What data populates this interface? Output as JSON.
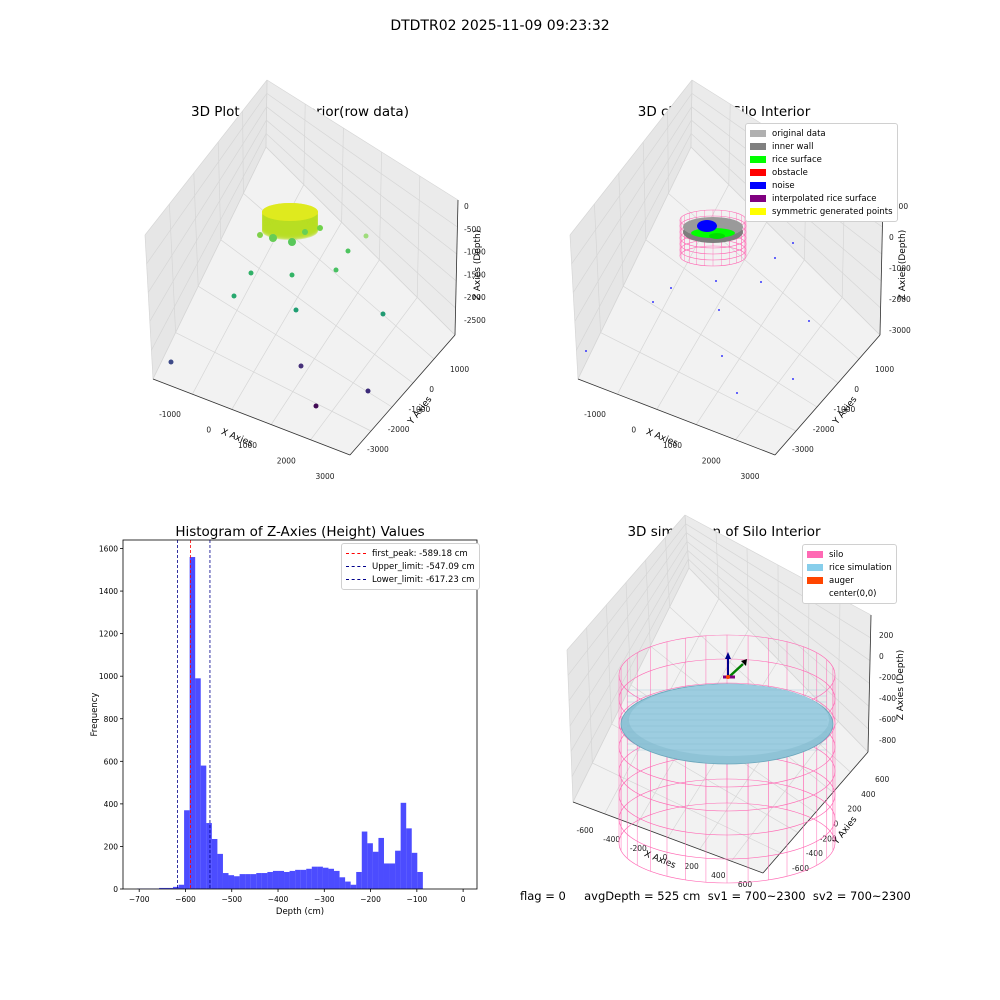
{
  "suptitle": "DTDTR02 2025-11-09 09:23:32",
  "panels": {
    "raw": {
      "title": "3D Plot of Silo Interior(row data)",
      "xlabel": "X Axies",
      "ylabel": "Y Axies",
      "zlabel": "Z Axies (Depth)",
      "xticks": [
        "-1000",
        "0",
        "1000",
        "2000",
        "3000"
      ],
      "yticks": [
        "1000",
        "0",
        "-1000",
        "-2000",
        "-3000"
      ],
      "zticks": [
        "0",
        "-500",
        "-1000",
        "-1500",
        "-2000",
        "-2500"
      ]
    },
    "classify": {
      "title": "3D classify of Silo Interior",
      "xlabel": "X Axies",
      "ylabel": "Y Axies",
      "zlabel": "Z Axies (Depth)",
      "xticks": [
        "-1000",
        "0",
        "1000",
        "2000",
        "3000"
      ],
      "yticks": [
        "1000",
        "0",
        "-1000",
        "-2000",
        "-3000"
      ],
      "zticks": [
        "1000",
        "0",
        "-1000",
        "-2000",
        "-3000"
      ],
      "legend": [
        {
          "label": "original data",
          "color": "#b0b0b0"
        },
        {
          "label": "inner wall",
          "color": "#808080"
        },
        {
          "label": "rice surface",
          "color": "#00ff00"
        },
        {
          "label": "obstacle",
          "color": "#ff0000"
        },
        {
          "label": "noise",
          "color": "#0000ff"
        },
        {
          "label": "interpolated rice surface",
          "color": "#800080"
        },
        {
          "label": "symmetric generated points",
          "color": "#ffff00"
        }
      ]
    },
    "simulation": {
      "title": "3D simulation of Silo Interior",
      "xlabel": "X Axies",
      "ylabel": "Y Axies",
      "zlabel": "Z Axies (Depth)",
      "xticks": [
        "-600",
        "-400",
        "-200",
        "0",
        "200",
        "400",
        "600"
      ],
      "yticks": [
        "600",
        "400",
        "200",
        "0",
        "-200",
        "-400",
        "-600"
      ],
      "zticks": [
        "200",
        "0",
        "-200",
        "-400",
        "-600",
        "-800"
      ],
      "legend": [
        {
          "label": "silo",
          "color": "#ff69b4"
        },
        {
          "label": "rice simulation",
          "color": "#87ceeb"
        },
        {
          "label": "auger",
          "color": "#ff4500"
        },
        {
          "label": "center(0,0)",
          "color": ""
        }
      ],
      "footer": "flag = 0     avgDepth = 525 cm  sv1 = 700~2300  sv2 = 700~2300"
    }
  },
  "chart_data": {
    "type": "bar",
    "title": "Histogram of Z-Axies (Height) Values",
    "xlabel": "Depth (cm)",
    "ylabel": "Frequency",
    "xlim": [
      -735,
      30
    ],
    "ylim": [
      0,
      1640
    ],
    "xticks": [
      -700,
      -600,
      -500,
      -400,
      -300,
      -200,
      -100,
      0
    ],
    "yticks": [
      0,
      200,
      400,
      600,
      800,
      1000,
      1200,
      1400,
      1600
    ],
    "bar_color": "#0000ff",
    "bins": [
      {
        "x0": -705,
        "x1": -657,
        "count": 2
      },
      {
        "x0": -657,
        "x1": -627,
        "count": 5
      },
      {
        "x0": -627,
        "x1": -615,
        "count": 10
      },
      {
        "x0": -615,
        "x1": -603,
        "count": 20
      },
      {
        "x0": -603,
        "x1": -591,
        "count": 370
      },
      {
        "x0": -591,
        "x1": -579,
        "count": 1560
      },
      {
        "x0": -579,
        "x1": -567,
        "count": 990
      },
      {
        "x0": -567,
        "x1": -555,
        "count": 580
      },
      {
        "x0": -555,
        "x1": -543,
        "count": 310
      },
      {
        "x0": -543,
        "x1": -531,
        "count": 235
      },
      {
        "x0": -531,
        "x1": -519,
        "count": 165
      },
      {
        "x0": -519,
        "x1": -507,
        "count": 75
      },
      {
        "x0": -507,
        "x1": -495,
        "count": 65
      },
      {
        "x0": -495,
        "x1": -483,
        "count": 60
      },
      {
        "x0": -483,
        "x1": -471,
        "count": 70
      },
      {
        "x0": -471,
        "x1": -459,
        "count": 70
      },
      {
        "x0": -459,
        "x1": -447,
        "count": 70
      },
      {
        "x0": -447,
        "x1": -435,
        "count": 75
      },
      {
        "x0": -435,
        "x1": -423,
        "count": 75
      },
      {
        "x0": -423,
        "x1": -411,
        "count": 80
      },
      {
        "x0": -411,
        "x1": -399,
        "count": 85
      },
      {
        "x0": -399,
        "x1": -387,
        "count": 85
      },
      {
        "x0": -387,
        "x1": -375,
        "count": 80
      },
      {
        "x0": -375,
        "x1": -363,
        "count": 85
      },
      {
        "x0": -363,
        "x1": -351,
        "count": 90
      },
      {
        "x0": -351,
        "x1": -339,
        "count": 90
      },
      {
        "x0": -339,
        "x1": -327,
        "count": 95
      },
      {
        "x0": -327,
        "x1": -315,
        "count": 105
      },
      {
        "x0": -315,
        "x1": -303,
        "count": 105
      },
      {
        "x0": -303,
        "x1": -291,
        "count": 100
      },
      {
        "x0": -291,
        "x1": -279,
        "count": 95
      },
      {
        "x0": -279,
        "x1": -267,
        "count": 85
      },
      {
        "x0": -267,
        "x1": -255,
        "count": 55
      },
      {
        "x0": -255,
        "x1": -243,
        "count": 35
      },
      {
        "x0": -243,
        "x1": -231,
        "count": 20
      },
      {
        "x0": -231,
        "x1": -219,
        "count": 80
      },
      {
        "x0": -219,
        "x1": -207,
        "count": 270
      },
      {
        "x0": -207,
        "x1": -195,
        "count": 215
      },
      {
        "x0": -195,
        "x1": -183,
        "count": 175
      },
      {
        "x0": -183,
        "x1": -171,
        "count": 240
      },
      {
        "x0": -171,
        "x1": -159,
        "count": 120
      },
      {
        "x0": -159,
        "x1": -147,
        "count": 120
      },
      {
        "x0": -147,
        "x1": -135,
        "count": 180
      },
      {
        "x0": -135,
        "x1": -123,
        "count": 405
      },
      {
        "x0": -123,
        "x1": -111,
        "count": 285
      },
      {
        "x0": -111,
        "x1": -99,
        "count": 170
      },
      {
        "x0": -99,
        "x1": -87,
        "count": 80
      }
    ],
    "lines": [
      {
        "value": -589.18,
        "label": "first_peak: -589.18 cm",
        "color": "#ff0000"
      },
      {
        "value": -547.09,
        "label": "Upper_limit: -547.09 cm",
        "color": "#00008b"
      },
      {
        "value": -617.23,
        "label": "Lower_limit: -617.23 cm",
        "color": "#00008b"
      }
    ]
  }
}
